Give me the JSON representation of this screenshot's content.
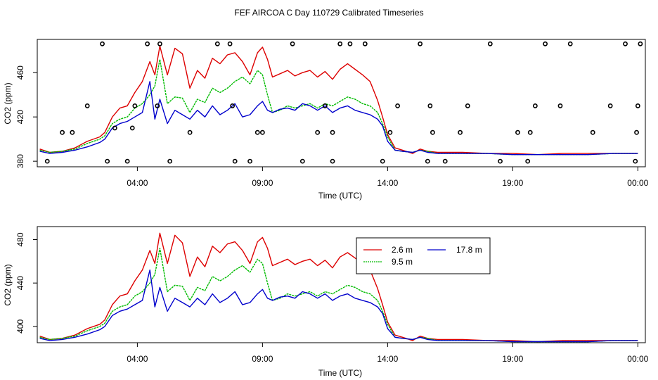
{
  "figure_title": "FEF AIRCOA C  Day 110729  Calibrated Timeseries",
  "colors": {
    "2.6 m": "#dd0000",
    "9.5 m": "#00bb00",
    "17.8 m": "#0000cc",
    "points": "#000000"
  },
  "chart_data": [
    {
      "type": "line",
      "title": "",
      "xlabel": "Time (UTC)",
      "ylabel": "CO2 (ppm)",
      "xlim": [
        0.0,
        24.3
      ],
      "ylim": [
        375,
        490
      ],
      "xticks": [
        {
          "v": 4,
          "label": "04:00"
        },
        {
          "v": 9,
          "label": "09:00"
        },
        {
          "v": 14,
          "label": "14:00"
        },
        {
          "v": 19,
          "label": "19:00"
        },
        {
          "v": 24,
          "label": "00:00"
        }
      ],
      "yticks": [
        {
          "v": 380,
          "label": "380"
        },
        {
          "v": 420,
          "label": "420"
        },
        {
          "v": 460,
          "label": "460"
        }
      ],
      "x": [
        0.1,
        0.5,
        1.0,
        1.5,
        2.0,
        2.5,
        2.7,
        3.0,
        3.3,
        3.6,
        3.9,
        4.2,
        4.5,
        4.7,
        4.9,
        5.2,
        5.5,
        5.8,
        6.1,
        6.4,
        6.7,
        7.0,
        7.3,
        7.6,
        7.9,
        8.2,
        8.5,
        8.8,
        9.0,
        9.2,
        9.4,
        9.7,
        10.0,
        10.3,
        10.6,
        10.9,
        11.2,
        11.5,
        11.8,
        12.1,
        12.4,
        12.7,
        13.0,
        13.3,
        13.6,
        13.8,
        14.0,
        14.3,
        14.6,
        15.0,
        15.3,
        15.6,
        16.0,
        17.0,
        18.0,
        19.0,
        20.0,
        21.0,
        22.0,
        23.0,
        24.0
      ],
      "series": [
        {
          "name": "2.6 m",
          "values": [
            391,
            388,
            389,
            392,
            398,
            402,
            406,
            420,
            428,
            430,
            442,
            452,
            470,
            458,
            484,
            458,
            482,
            477,
            446,
            462,
            455,
            473,
            468,
            476,
            478,
            470,
            458,
            478,
            483,
            472,
            456,
            459,
            462,
            457,
            460,
            462,
            456,
            461,
            454,
            463,
            468,
            463,
            458,
            452,
            435,
            420,
            404,
            392,
            390,
            387,
            391,
            389,
            388,
            388,
            387,
            387,
            386,
            387,
            387,
            387,
            387
          ]
        },
        {
          "name": "9.5 m",
          "values": [
            390,
            388,
            389,
            391,
            396,
            400,
            403,
            414,
            418,
            420,
            428,
            432,
            440,
            448,
            472,
            432,
            438,
            437,
            424,
            436,
            433,
            446,
            442,
            446,
            452,
            456,
            450,
            462,
            458,
            440,
            424,
            426,
            430,
            428,
            430,
            432,
            428,
            432,
            430,
            434,
            438,
            436,
            432,
            430,
            424,
            414,
            402,
            390,
            389,
            388,
            390,
            389,
            387,
            387,
            387,
            386,
            386,
            386,
            386,
            387,
            387
          ]
        },
        {
          "name": "17.8 m",
          "values": [
            389,
            387,
            388,
            390,
            393,
            397,
            400,
            410,
            414,
            416,
            420,
            424,
            452,
            418,
            436,
            414,
            426,
            422,
            418,
            426,
            420,
            430,
            422,
            426,
            432,
            420,
            422,
            430,
            434,
            426,
            424,
            427,
            428,
            426,
            432,
            430,
            426,
            430,
            424,
            428,
            430,
            426,
            424,
            422,
            418,
            412,
            398,
            390,
            389,
            388,
            390,
            388,
            387,
            387,
            387,
            386,
            386,
            386,
            386,
            387,
            387
          ]
        }
      ],
      "point_series": {
        "x": [
          0.4,
          1.0,
          1.4,
          2.0,
          2.6,
          2.8,
          3.1,
          3.6,
          3.8,
          3.9,
          4.4,
          4.8,
          4.9,
          5.3,
          6.1,
          7.2,
          7.7,
          7.8,
          7.9,
          8.5,
          8.8,
          9.0,
          10.2,
          10.6,
          11.2,
          11.5,
          11.8,
          11.8,
          12.1,
          12.5,
          13.1,
          13.8,
          14.1,
          14.4,
          15.3,
          15.6,
          15.7,
          15.8,
          16.3,
          16.9,
          17.2,
          18.1,
          18.5,
          19.2,
          19.6,
          19.7,
          19.9,
          20.3,
          20.9,
          21.3,
          22.2,
          22.9,
          23.5,
          23.9,
          23.95,
          24.0,
          24.1
        ],
        "values": [
          380,
          406,
          406,
          430,
          486,
          380,
          410,
          380,
          410,
          430,
          486,
          430,
          486,
          380,
          406,
          486,
          486,
          430,
          380,
          380,
          406,
          406,
          486,
          380,
          406,
          430,
          380,
          406,
          486,
          486,
          486,
          380,
          406,
          430,
          486,
          380,
          430,
          406,
          380,
          406,
          430,
          486,
          380,
          406,
          380,
          406,
          430,
          486,
          430,
          486,
          406,
          430,
          486,
          380,
          406,
          430,
          486
        ]
      }
    },
    {
      "type": "line",
      "title": "",
      "xlabel": "Time (UTC)",
      "ylabel": "CO2 (ppm)",
      "xlim": [
        0.0,
        24.3
      ],
      "ylim": [
        385,
        492
      ],
      "xticks": [
        {
          "v": 4,
          "label": "04:00"
        },
        {
          "v": 9,
          "label": "09:00"
        },
        {
          "v": 14,
          "label": "14:00"
        },
        {
          "v": 19,
          "label": "19:00"
        },
        {
          "v": 24,
          "label": "00:00"
        }
      ],
      "yticks": [
        {
          "v": 400,
          "label": "400"
        },
        {
          "v": 440,
          "label": "440"
        },
        {
          "v": 480,
          "label": "480"
        }
      ],
      "legend": {
        "position": "top-right",
        "entries": [
          "2.6 m",
          "17.8 m",
          "9.5 m"
        ]
      },
      "x": [
        0.1,
        0.5,
        1.0,
        1.5,
        2.0,
        2.5,
        2.7,
        3.0,
        3.3,
        3.6,
        3.9,
        4.2,
        4.5,
        4.7,
        4.9,
        5.2,
        5.5,
        5.8,
        6.1,
        6.4,
        6.7,
        7.0,
        7.3,
        7.6,
        7.9,
        8.2,
        8.5,
        8.8,
        9.0,
        9.2,
        9.4,
        9.7,
        10.0,
        10.3,
        10.6,
        10.9,
        11.2,
        11.5,
        11.8,
        12.1,
        12.4,
        12.7,
        13.0,
        13.3,
        13.6,
        13.8,
        14.0,
        14.3,
        14.6,
        15.0,
        15.3,
        15.6,
        16.0,
        17.0,
        18.0,
        19.0,
        20.0,
        21.0,
        22.0,
        23.0,
        24.0
      ],
      "series": [
        {
          "name": "2.6 m",
          "values": [
            391,
            388,
            389,
            392,
            398,
            402,
            406,
            420,
            428,
            430,
            442,
            452,
            470,
            458,
            486,
            458,
            484,
            477,
            446,
            464,
            455,
            474,
            468,
            476,
            478,
            470,
            458,
            478,
            482,
            472,
            456,
            459,
            462,
            457,
            460,
            462,
            456,
            461,
            454,
            464,
            468,
            463,
            458,
            452,
            435,
            420,
            404,
            392,
            390,
            387,
            391,
            389,
            388,
            388,
            387,
            387,
            386,
            387,
            387,
            387,
            387
          ]
        },
        {
          "name": "9.5 m",
          "values": [
            390,
            388,
            389,
            391,
            396,
            400,
            403,
            414,
            418,
            420,
            428,
            432,
            440,
            448,
            472,
            432,
            438,
            437,
            424,
            436,
            433,
            446,
            442,
            446,
            452,
            456,
            450,
            462,
            458,
            440,
            424,
            426,
            430,
            428,
            430,
            432,
            428,
            432,
            430,
            434,
            438,
            436,
            432,
            430,
            424,
            414,
            402,
            390,
            389,
            388,
            390,
            389,
            387,
            387,
            387,
            386,
            386,
            386,
            386,
            387,
            387
          ]
        },
        {
          "name": "17.8 m",
          "values": [
            389,
            387,
            388,
            390,
            393,
            397,
            400,
            410,
            414,
            416,
            420,
            424,
            452,
            418,
            436,
            414,
            426,
            422,
            418,
            426,
            420,
            430,
            422,
            426,
            432,
            420,
            422,
            430,
            434,
            426,
            424,
            427,
            428,
            426,
            432,
            430,
            426,
            430,
            424,
            428,
            430,
            426,
            424,
            422,
            418,
            412,
            398,
            390,
            389,
            388,
            390,
            388,
            387,
            387,
            387,
            386,
            386,
            386,
            386,
            387,
            387
          ]
        }
      ]
    }
  ]
}
